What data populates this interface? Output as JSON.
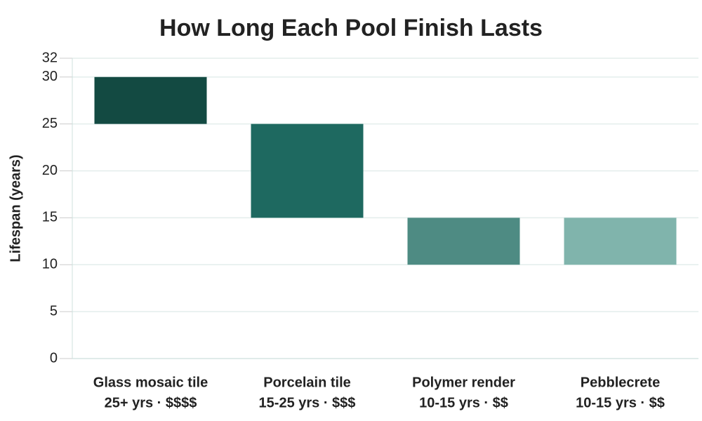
{
  "chart_data": {
    "type": "floating_bar",
    "title": "How Long Each Pool Finish Lasts",
    "y_label": "Lifespan (years)",
    "categories": [
      [
        "Glass mosaic tile",
        "25+ yrs · $$$$"
      ],
      [
        "Porcelain tile",
        "15-25 yrs · $$$"
      ],
      [
        "Polymer render",
        "10-15 yrs · $$"
      ],
      [
        "Pebblecrete",
        "10-15 yrs · $$"
      ]
    ],
    "low": [
      25,
      15,
      10,
      10
    ],
    "high": [
      30,
      25,
      15,
      15
    ],
    "colors": [
      "#134a42",
      "#1e6960",
      "#4e8b83",
      "#80b4ac"
    ],
    "ylim": [
      0,
      32
    ],
    "yticks": [
      0,
      5,
      10,
      15,
      20,
      25,
      30,
      32
    ],
    "grid": true
  }
}
